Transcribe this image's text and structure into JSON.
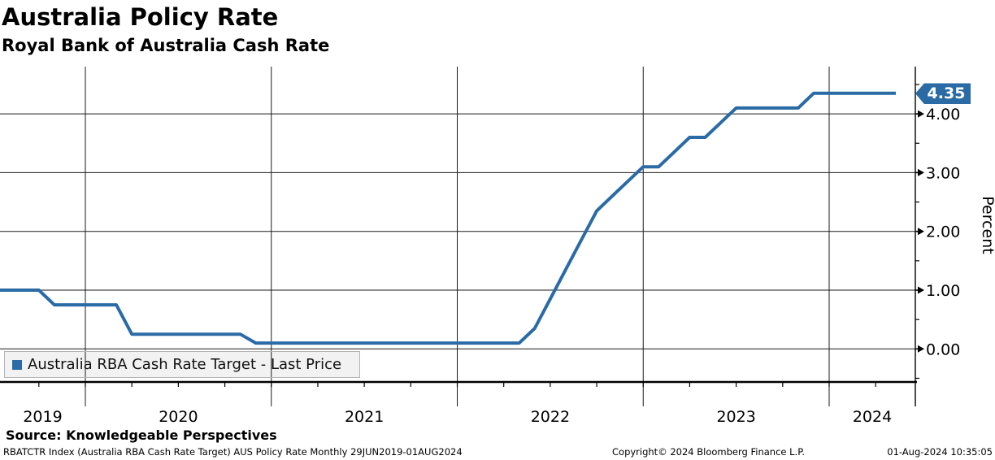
{
  "header": {
    "title": "Australia Policy Rate",
    "subtitle": "Royal Bank of Australia Cash Rate"
  },
  "legend": {
    "label": "Australia RBA Cash Rate Target - Last Price"
  },
  "chart_data": {
    "type": "line",
    "title": "Australia Policy Rate",
    "subtitle": "Royal Bank of Australia Cash Rate",
    "series_name": "Australia RBA Cash Rate Target - Last Price",
    "ylabel": "Percent",
    "xlabel": "",
    "last_price_label": "4.35",
    "ylim": [
      -0.68,
      4.8
    ],
    "grid": true,
    "legend_position": "bottom-left",
    "y_ticks": [
      {
        "label": "0.00",
        "v": 0
      },
      {
        "label": "1.00",
        "v": 1
      },
      {
        "label": "2.00",
        "v": 2
      },
      {
        "label": "3.00",
        "v": 3
      },
      {
        "label": "4.00",
        "v": 4
      }
    ],
    "y_minor_ticks": [
      -0.5,
      0.5,
      1.5,
      2.5,
      3.5,
      4.5
    ],
    "x_years": [
      "2019",
      "2020",
      "2021",
      "2022",
      "2023",
      "2024"
    ],
    "points": [
      {
        "m": "2019-06",
        "v": 1.0
      },
      {
        "m": "2019-07",
        "v": 1.0
      },
      {
        "m": "2019-08",
        "v": 1.0
      },
      {
        "m": "2019-09",
        "v": 1.0
      },
      {
        "m": "2019-10",
        "v": 0.75
      },
      {
        "m": "2019-11",
        "v": 0.75
      },
      {
        "m": "2019-12",
        "v": 0.75
      },
      {
        "m": "2020-01",
        "v": 0.75
      },
      {
        "m": "2020-02",
        "v": 0.75
      },
      {
        "m": "2020-03",
        "v": 0.25
      },
      {
        "m": "2020-04",
        "v": 0.25
      },
      {
        "m": "2020-05",
        "v": 0.25
      },
      {
        "m": "2020-06",
        "v": 0.25
      },
      {
        "m": "2020-07",
        "v": 0.25
      },
      {
        "m": "2020-08",
        "v": 0.25
      },
      {
        "m": "2020-09",
        "v": 0.25
      },
      {
        "m": "2020-10",
        "v": 0.25
      },
      {
        "m": "2020-11",
        "v": 0.1
      },
      {
        "m": "2020-12",
        "v": 0.1
      },
      {
        "m": "2021-01",
        "v": 0.1
      },
      {
        "m": "2021-02",
        "v": 0.1
      },
      {
        "m": "2021-03",
        "v": 0.1
      },
      {
        "m": "2021-04",
        "v": 0.1
      },
      {
        "m": "2021-05",
        "v": 0.1
      },
      {
        "m": "2021-06",
        "v": 0.1
      },
      {
        "m": "2021-07",
        "v": 0.1
      },
      {
        "m": "2021-08",
        "v": 0.1
      },
      {
        "m": "2021-09",
        "v": 0.1
      },
      {
        "m": "2021-10",
        "v": 0.1
      },
      {
        "m": "2021-11",
        "v": 0.1
      },
      {
        "m": "2021-12",
        "v": 0.1
      },
      {
        "m": "2022-01",
        "v": 0.1
      },
      {
        "m": "2022-02",
        "v": 0.1
      },
      {
        "m": "2022-03",
        "v": 0.1
      },
      {
        "m": "2022-04",
        "v": 0.1
      },
      {
        "m": "2022-05",
        "v": 0.35
      },
      {
        "m": "2022-06",
        "v": 0.85
      },
      {
        "m": "2022-07",
        "v": 1.35
      },
      {
        "m": "2022-08",
        "v": 1.85
      },
      {
        "m": "2022-09",
        "v": 2.35
      },
      {
        "m": "2022-10",
        "v": 2.6
      },
      {
        "m": "2022-11",
        "v": 2.85
      },
      {
        "m": "2022-12",
        "v": 3.1
      },
      {
        "m": "2023-01",
        "v": 3.1
      },
      {
        "m": "2023-02",
        "v": 3.35
      },
      {
        "m": "2023-03",
        "v": 3.6
      },
      {
        "m": "2023-04",
        "v": 3.6
      },
      {
        "m": "2023-05",
        "v": 3.85
      },
      {
        "m": "2023-06",
        "v": 4.1
      },
      {
        "m": "2023-07",
        "v": 4.1
      },
      {
        "m": "2023-08",
        "v": 4.1
      },
      {
        "m": "2023-09",
        "v": 4.1
      },
      {
        "m": "2023-10",
        "v": 4.1
      },
      {
        "m": "2023-11",
        "v": 4.35
      },
      {
        "m": "2023-12",
        "v": 4.35
      },
      {
        "m": "2024-01",
        "v": 4.35
      },
      {
        "m": "2024-02",
        "v": 4.35
      },
      {
        "m": "2024-03",
        "v": 4.35
      },
      {
        "m": "2024-04",
        "v": 4.35
      },
      {
        "m": "2024-05",
        "v": 4.35
      },
      {
        "m": "2024-06",
        "v": 4.35
      },
      {
        "m": "2024-07",
        "v": 4.35
      },
      {
        "m": "2024-08",
        "v": 4.35
      }
    ]
  },
  "footer": {
    "source": "Source: Knowledgeable Perspectives",
    "left": "RBATCTR Index (Australia RBA Cash Rate Target) AUS Policy Rate  Monthly 29JUN2019-01AUG2024",
    "center": "Copyright© 2024 Bloomberg Finance L.P.",
    "right": "01-Aug-2024 10:35:05"
  },
  "colors": {
    "line": "#2a6ba6",
    "tag_bg": "#2a6ba6",
    "tag_text": "#ffffff",
    "grid": "#1a1a1a",
    "legend_bg": "#f2f2f2",
    "legend_border": "#b5b5b5"
  }
}
